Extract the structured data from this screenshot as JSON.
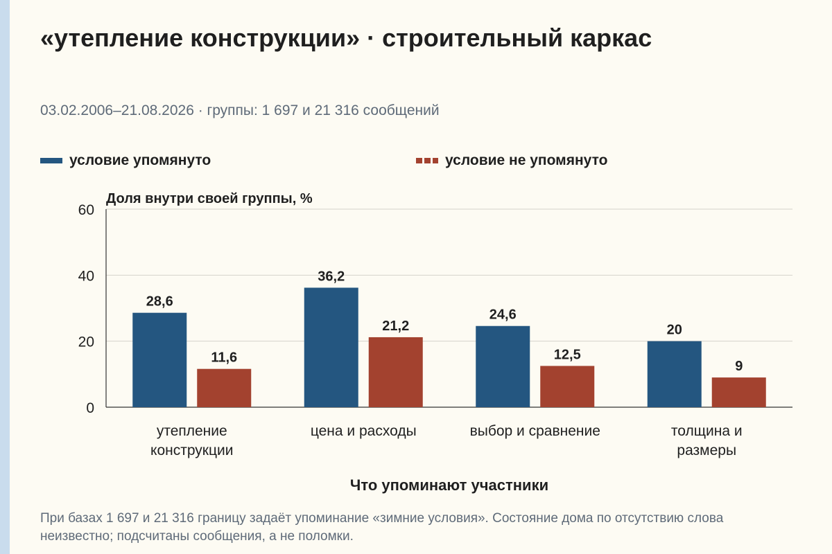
{
  "title": "«утепление конструкции» · строительный каркас",
  "subtitle": "03.02.2006–21.08.2026 · группы: 1 697 и 21 316 сообщений",
  "footnote": "При базах 1 697 и 21 316 границу задаёт упоминание «зимние условия». Состояние дома по отсутствию слова неизвестно; подсчитаны сообщения, а не поломки.",
  "colors": {
    "mentioned": "#245680",
    "not_mentioned": "#a3422f",
    "accent_strip": "#c9dced"
  },
  "chart_data": {
    "type": "bar",
    "ylabel": "Доля внутри своей группы, %",
    "xlabel": "Что упоминают участники",
    "ylim": [
      0,
      60
    ],
    "yticks": [
      "0",
      "20",
      "40",
      "60"
    ],
    "grid": true,
    "legend_position": "top",
    "categories": [
      [
        "утепление",
        "конструкции"
      ],
      [
        "цена и расходы"
      ],
      [
        "выбор и сравнение"
      ],
      [
        "толщина и",
        "размеры"
      ]
    ],
    "series": [
      {
        "name": "условие упомянуто",
        "values": [
          28.6,
          36.2,
          24.6,
          20
        ],
        "labels": [
          "28,6",
          "36,2",
          "24,6",
          "20"
        ]
      },
      {
        "name": "условие не упомянуто",
        "values": [
          11.6,
          21.2,
          12.5,
          9
        ],
        "labels": [
          "11,6",
          "21,2",
          "12,5",
          "9"
        ]
      }
    ]
  }
}
